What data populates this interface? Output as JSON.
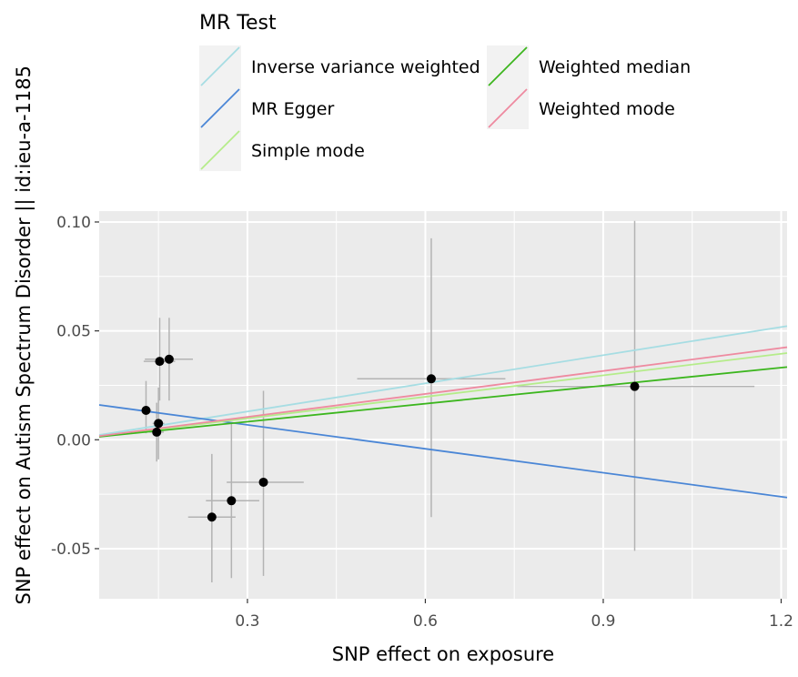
{
  "chart_data": {
    "type": "scatter",
    "title": "",
    "xlabel": "SNP effect on exposure",
    "ylabel": "SNP effect on Autism Spectrum Disorder || id:ieu-a-1185",
    "xlim": [
      0.05,
      1.21
    ],
    "ylim": [
      -0.073,
      0.105
    ],
    "x_ticks": [
      0.3,
      0.6,
      0.9,
      1.2
    ],
    "x_tick_labels": [
      "0.3",
      "0.6",
      "0.9",
      "1.2"
    ],
    "y_ticks": [
      -0.05,
      0.0,
      0.05,
      0.1
    ],
    "y_tick_labels": [
      "-0.05",
      "0.00",
      "0.05",
      "0.10"
    ],
    "grid": true,
    "legend": {
      "title": "MR Test",
      "placement": "top",
      "entries": [
        {
          "label": "Inverse variance weighted",
          "color": "#a6dde3"
        },
        {
          "label": "MR Egger",
          "color": "#4a86d6"
        },
        {
          "label": "Simple mode",
          "color": "#b5ec8a"
        },
        {
          "label": "Weighted median",
          "color": "#3cb61e"
        },
        {
          "label": "Weighted mode",
          "color": "#ee8aa0"
        }
      ]
    },
    "points": [
      {
        "x": 0.129,
        "y": 0.0135,
        "x_lo": 0.12,
        "x_hi": 0.138,
        "y_lo": 0.003,
        "y_hi": 0.027
      },
      {
        "x": 0.147,
        "y": 0.0035,
        "x_lo": 0.135,
        "x_hi": 0.159,
        "y_lo": -0.01,
        "y_hi": 0.017
      },
      {
        "x": 0.15,
        "y": 0.0075,
        "x_lo": 0.14,
        "x_hi": 0.16,
        "y_lo": -0.009,
        "y_hi": 0.024
      },
      {
        "x": 0.152,
        "y": 0.036,
        "x_lo": 0.125,
        "x_hi": 0.178,
        "y_lo": 0.018,
        "y_hi": 0.056
      },
      {
        "x": 0.168,
        "y": 0.037,
        "x_lo": 0.127,
        "x_hi": 0.208,
        "y_lo": 0.018,
        "y_hi": 0.056
      },
      {
        "x": 0.24,
        "y": -0.0355,
        "x_lo": 0.2,
        "x_hi": 0.28,
        "y_lo": -0.0655,
        "y_hi": -0.0065
      },
      {
        "x": 0.273,
        "y": -0.028,
        "x_lo": 0.23,
        "x_hi": 0.32,
        "y_lo": -0.0635,
        "y_hi": 0.0075
      },
      {
        "x": 0.327,
        "y": -0.0195,
        "x_lo": 0.265,
        "x_hi": 0.395,
        "y_lo": -0.0625,
        "y_hi": 0.0225
      },
      {
        "x": 0.61,
        "y": 0.028,
        "x_lo": 0.485,
        "x_hi": 0.735,
        "y_lo": -0.0355,
        "y_hi": 0.0925
      },
      {
        "x": 0.953,
        "y": 0.0245,
        "x_lo": 0.755,
        "x_hi": 1.155,
        "y_lo": -0.051,
        "y_hi": 0.1005
      }
    ],
    "lines": [
      {
        "name": "Inverse variance weighted",
        "color": "#a6dde3",
        "x": [
          0.05,
          1.21
        ],
        "y": [
          0.0022,
          0.0522
        ]
      },
      {
        "name": "MR Egger",
        "color": "#4a86d6",
        "x": [
          0.05,
          1.21
        ],
        "y": [
          0.016,
          -0.0265
        ]
      },
      {
        "name": "Simple mode",
        "color": "#b5ec8a",
        "x": [
          0.05,
          1.21
        ],
        "y": [
          0.0016,
          0.0398
        ]
      },
      {
        "name": "Weighted median",
        "color": "#3cb61e",
        "x": [
          0.05,
          1.21
        ],
        "y": [
          0.0014,
          0.0334
        ]
      },
      {
        "name": "Weighted mode",
        "color": "#ee8aa0",
        "x": [
          0.05,
          1.21
        ],
        "y": [
          0.0017,
          0.0425
        ]
      }
    ],
    "colors": {
      "panel_background": "#ebebeb",
      "grid": "#ffffff",
      "errorbar": "#b3b3b3",
      "point": "#000000"
    }
  }
}
